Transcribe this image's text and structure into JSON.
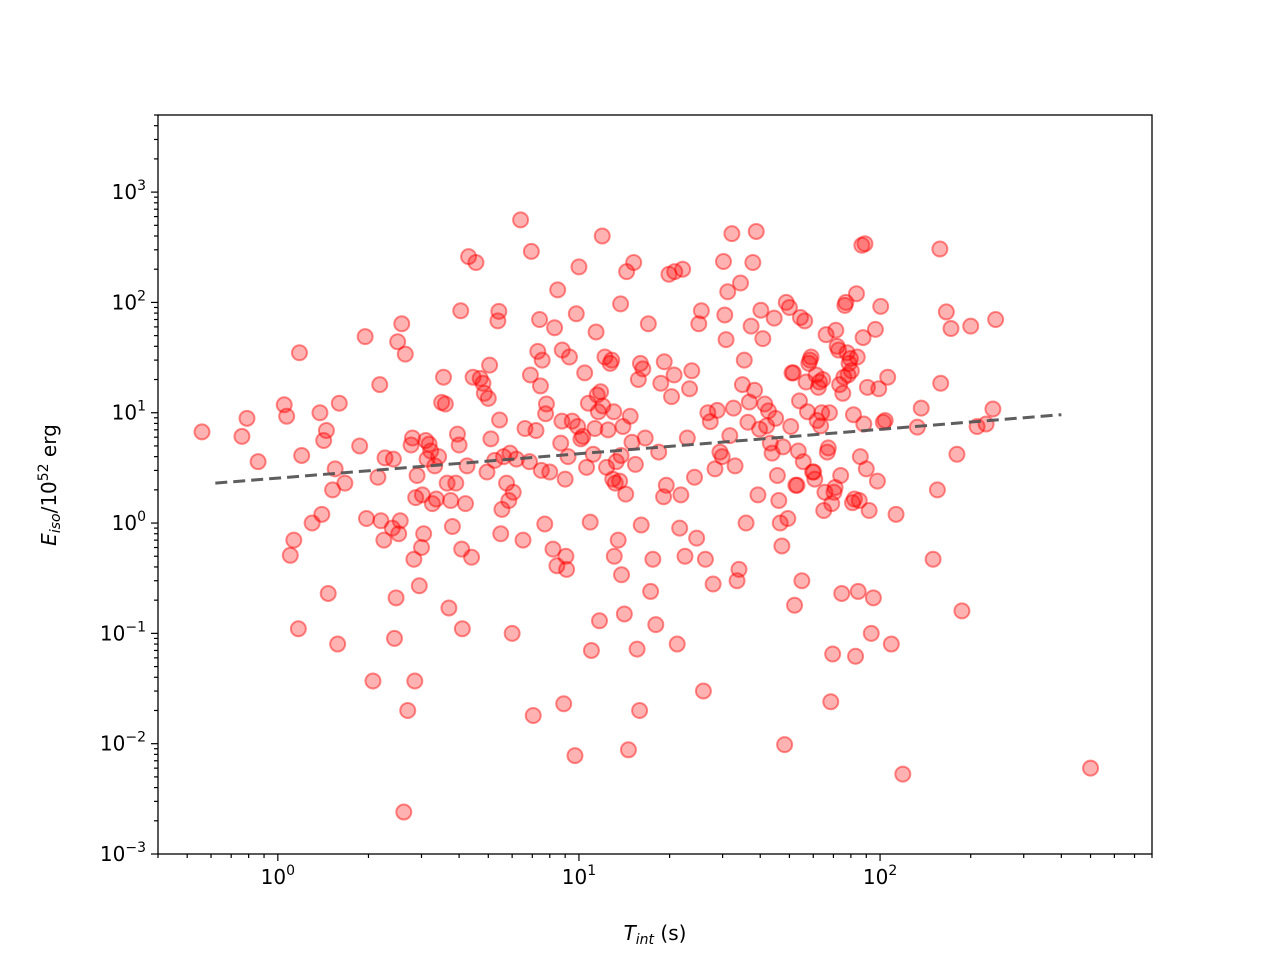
{
  "chart_data": {
    "type": "scatter",
    "xscale": "log",
    "yscale": "log",
    "xlim": [
      0.4,
      800
    ],
    "ylim": [
      0.001,
      5000
    ],
    "xlabel": {
      "base": "T",
      "sub": "int",
      "tail": " (s)"
    },
    "ylabel": {
      "base": "E",
      "sub": "iso",
      "mid": "/10",
      "sup": "52",
      "tail": " erg"
    },
    "xticks": [
      {
        "value": 1,
        "base": "10",
        "exp": "0"
      },
      {
        "value": 10,
        "base": "10",
        "exp": "1"
      },
      {
        "value": 100,
        "base": "10",
        "exp": "2"
      }
    ],
    "yticks": [
      {
        "value": 0.001,
        "base": "10",
        "exp": "−3"
      },
      {
        "value": 0.01,
        "base": "10",
        "exp": "−2"
      },
      {
        "value": 0.1,
        "base": "10",
        "exp": "−1"
      },
      {
        "value": 1,
        "base": "10",
        "exp": "0"
      },
      {
        "value": 10,
        "base": "10",
        "exp": "1"
      },
      {
        "value": 100,
        "base": "10",
        "exp": "2"
      },
      {
        "value": 1000,
        "base": "10",
        "exp": "3"
      }
    ],
    "marker_color": "#ff0000",
    "fit_line_color": "#555555",
    "fit_line": {
      "x": [
        0.62,
        400
      ],
      "y": [
        2.3,
        9.6
      ]
    },
    "points": [
      [
        0.56,
        6.7
      ],
      [
        0.76,
        6.1
      ],
      [
        0.79,
        8.9
      ],
      [
        0.86,
        3.6
      ],
      [
        1.05,
        11.8
      ],
      [
        1.07,
        9.3
      ],
      [
        1.1,
        0.51
      ],
      [
        1.13,
        0.7
      ],
      [
        1.17,
        0.11
      ],
      [
        1.18,
        35
      ],
      [
        1.2,
        4.1
      ],
      [
        1.3,
        1.0
      ],
      [
        1.38,
        10
      ],
      [
        1.4,
        1.2
      ],
      [
        1.42,
        5.6
      ],
      [
        1.45,
        6.9
      ],
      [
        1.47,
        0.23
      ],
      [
        1.52,
        2.0
      ],
      [
        1.55,
        3.1
      ],
      [
        1.58,
        0.08
      ],
      [
        1.6,
        12.2
      ],
      [
        1.67,
        2.3
      ],
      [
        1.87,
        5.0
      ],
      [
        1.95,
        49
      ],
      [
        1.97,
        1.1
      ],
      [
        2.07,
        0.037
      ],
      [
        2.15,
        2.6
      ],
      [
        2.18,
        18
      ],
      [
        2.2,
        1.05
      ],
      [
        2.25,
        0.7
      ],
      [
        2.27,
        3.9
      ],
      [
        2.4,
        0.9
      ],
      [
        2.42,
        3.8
      ],
      [
        2.44,
        0.09
      ],
      [
        2.47,
        0.21
      ],
      [
        2.5,
        44
      ],
      [
        2.52,
        0.8
      ],
      [
        2.55,
        1.05
      ],
      [
        2.58,
        64
      ],
      [
        2.62,
        0.0024
      ],
      [
        2.65,
        34
      ],
      [
        2.7,
        0.02
      ],
      [
        2.77,
        5.1
      ],
      [
        2.8,
        5.9
      ],
      [
        2.83,
        0.47
      ],
      [
        2.85,
        0.037
      ],
      [
        2.87,
        1.7
      ],
      [
        2.9,
        2.7
      ],
      [
        2.95,
        0.27
      ],
      [
        3.0,
        0.6
      ],
      [
        3.02,
        1.8
      ],
      [
        3.05,
        0.8
      ],
      [
        3.1,
        5.6
      ],
      [
        3.13,
        3.8
      ],
      [
        3.18,
        5.2
      ],
      [
        3.22,
        4.5
      ],
      [
        3.26,
        1.5
      ],
      [
        3.32,
        3.3
      ],
      [
        3.36,
        1.65
      ],
      [
        3.42,
        4.0
      ],
      [
        3.5,
        12.4
      ],
      [
        3.55,
        21
      ],
      [
        3.6,
        12
      ],
      [
        3.65,
        2.3
      ],
      [
        3.7,
        0.17
      ],
      [
        3.75,
        1.6
      ],
      [
        3.8,
        0.93
      ],
      [
        3.9,
        2.3
      ],
      [
        3.95,
        6.4
      ],
      [
        4.0,
        5.1
      ],
      [
        4.05,
        84
      ],
      [
        4.08,
        0.58
      ],
      [
        4.1,
        0.11
      ],
      [
        4.2,
        1.5
      ],
      [
        4.25,
        3.3
      ],
      [
        4.3,
        260
      ],
      [
        4.4,
        0.49
      ],
      [
        4.45,
        21
      ],
      [
        4.55,
        230
      ],
      [
        4.7,
        20.5
      ],
      [
        4.8,
        18.5
      ],
      [
        4.85,
        15
      ],
      [
        4.95,
        2.9
      ],
      [
        5.0,
        13.5
      ],
      [
        5.05,
        27
      ],
      [
        5.1,
        5.8
      ],
      [
        5.25,
        3.7
      ],
      [
        5.38,
        68
      ],
      [
        5.42,
        83
      ],
      [
        5.45,
        8.6
      ],
      [
        5.5,
        0.8
      ],
      [
        5.55,
        1.33
      ],
      [
        5.62,
        4.0
      ],
      [
        5.75,
        2.3
      ],
      [
        5.85,
        1.6
      ],
      [
        5.9,
        4.3
      ],
      [
        6.0,
        0.1
      ],
      [
        6.05,
        1.9
      ],
      [
        6.2,
        3.8
      ],
      [
        6.4,
        560
      ],
      [
        6.52,
        0.7
      ],
      [
        6.62,
        7.2
      ],
      [
        6.85,
        3.6
      ],
      [
        6.9,
        22
      ],
      [
        6.95,
        290
      ],
      [
        7.05,
        0.018
      ],
      [
        7.2,
        6.9
      ],
      [
        7.3,
        36
      ],
      [
        7.4,
        70
      ],
      [
        7.45,
        17.5
      ],
      [
        7.5,
        3.0
      ],
      [
        7.55,
        30
      ],
      [
        7.7,
        0.98
      ],
      [
        7.75,
        9.8
      ],
      [
        7.8,
        12
      ],
      [
        8.0,
        2.9
      ],
      [
        8.2,
        0.58
      ],
      [
        8.3,
        59
      ],
      [
        8.45,
        0.41
      ],
      [
        8.5,
        130
      ],
      [
        8.7,
        5.3
      ],
      [
        8.78,
        8.4
      ],
      [
        8.8,
        37
      ],
      [
        8.9,
        0.023
      ],
      [
        9.0,
        2.5
      ],
      [
        9.05,
        0.5
      ],
      [
        9.1,
        0.38
      ],
      [
        9.2,
        4.0
      ],
      [
        9.3,
        32
      ],
      [
        9.5,
        8.4
      ],
      [
        9.7,
        0.0078
      ],
      [
        9.8,
        79
      ],
      [
        9.9,
        7.5
      ],
      [
        10.0,
        210
      ],
      [
        10.15,
        5.8
      ],
      [
        10.3,
        6.1
      ],
      [
        10.45,
        23
      ],
      [
        10.6,
        3.2
      ],
      [
        10.75,
        12.2
      ],
      [
        10.9,
        1.02
      ],
      [
        11.0,
        0.07
      ],
      [
        11.15,
        4.2
      ],
      [
        11.3,
        7.2
      ],
      [
        11.4,
        54
      ],
      [
        11.5,
        14.5
      ],
      [
        11.6,
        10.2
      ],
      [
        11.7,
        0.13
      ],
      [
        11.8,
        15.5
      ],
      [
        11.95,
        400
      ],
      [
        12.0,
        11.5
      ],
      [
        12.2,
        32
      ],
      [
        12.35,
        3.2
      ],
      [
        12.5,
        7.0
      ],
      [
        12.7,
        28
      ],
      [
        12.85,
        30
      ],
      [
        12.95,
        2.5
      ],
      [
        13.05,
        10.2
      ],
      [
        13.1,
        0.5
      ],
      [
        13.2,
        2.3
      ],
      [
        13.3,
        3.6
      ],
      [
        13.5,
        0.7
      ],
      [
        13.65,
        2.4
      ],
      [
        13.75,
        97
      ],
      [
        13.8,
        4.1
      ],
      [
        13.85,
        0.34
      ],
      [
        14.0,
        7.5
      ],
      [
        14.15,
        0.15
      ],
      [
        14.3,
        1.83
      ],
      [
        14.4,
        190
      ],
      [
        14.6,
        0.0088
      ],
      [
        14.8,
        9.3
      ],
      [
        15.0,
        5.4
      ],
      [
        15.2,
        230
      ],
      [
        15.4,
        3.4
      ],
      [
        15.6,
        0.072
      ],
      [
        15.75,
        20
      ],
      [
        15.9,
        0.02
      ],
      [
        16.0,
        28
      ],
      [
        16.1,
        0.96
      ],
      [
        16.3,
        25
      ],
      [
        16.6,
        5.9
      ],
      [
        17.0,
        64
      ],
      [
        17.3,
        0.24
      ],
      [
        17.6,
        0.47
      ],
      [
        18.0,
        0.12
      ],
      [
        18.4,
        4.4
      ],
      [
        18.7,
        18.5
      ],
      [
        19.1,
        1.73
      ],
      [
        19.2,
        29
      ],
      [
        19.5,
        2.2
      ],
      [
        19.9,
        180
      ],
      [
        20.3,
        14
      ],
      [
        20.7,
        22
      ],
      [
        20.8,
        190
      ],
      [
        21.2,
        0.08
      ],
      [
        21.6,
        0.9
      ],
      [
        21.8,
        1.8
      ],
      [
        22.1,
        200
      ],
      [
        22.5,
        0.5
      ],
      [
        22.9,
        5.9
      ],
      [
        23.3,
        16.5
      ],
      [
        23.7,
        24
      ],
      [
        24.2,
        2.6
      ],
      [
        24.6,
        0.73
      ],
      [
        25.0,
        64
      ],
      [
        25.5,
        84
      ],
      [
        25.9,
        0.03
      ],
      [
        26.3,
        0.47
      ],
      [
        26.8,
        10
      ],
      [
        27.3,
        8.3
      ],
      [
        27.9,
        0.28
      ],
      [
        28.3,
        3.1
      ],
      [
        28.8,
        10.5
      ],
      [
        29.4,
        4.4
      ],
      [
        29.9,
        4.0
      ],
      [
        30.2,
        235
      ],
      [
        30.5,
        77
      ],
      [
        30.8,
        46
      ],
      [
        31.2,
        125
      ],
      [
        31.7,
        6.2
      ],
      [
        32.2,
        420
      ],
      [
        32.6,
        11
      ],
      [
        33.0,
        3.3
      ],
      [
        33.5,
        0.3
      ],
      [
        34.0,
        0.38
      ],
      [
        34.4,
        150
      ],
      [
        34.9,
        18
      ],
      [
        35.4,
        30
      ],
      [
        35.9,
        1.0
      ],
      [
        36.4,
        8.2
      ],
      [
        36.8,
        12.5
      ],
      [
        37.3,
        61
      ],
      [
        37.8,
        230
      ],
      [
        38.3,
        16
      ],
      [
        38.8,
        440
      ],
      [
        39.3,
        1.8
      ],
      [
        39.8,
        7.1
      ],
      [
        40.2,
        85
      ],
      [
        40.8,
        47
      ],
      [
        41.4,
        12
      ],
      [
        42.0,
        7.6
      ],
      [
        42.6,
        10.4
      ],
      [
        43.2,
        5.3
      ],
      [
        43.8,
        4.3
      ],
      [
        44.5,
        72
      ],
      [
        45.0,
        8.9
      ],
      [
        45.6,
        2.7
      ],
      [
        46.1,
        1.6
      ],
      [
        46.6,
        1.0
      ],
      [
        47.2,
        0.62
      ],
      [
        47.6,
        4.9
      ],
      [
        48.2,
        0.0098
      ],
      [
        48.8,
        100
      ],
      [
        49.4,
        1.1
      ],
      [
        50.0,
        90
      ],
      [
        50.5,
        7.5
      ],
      [
        51.0,
        23
      ],
      [
        51.5,
        23
      ],
      [
        52.0,
        0.18
      ],
      [
        52.5,
        2.2
      ],
      [
        53.0,
        2.2
      ],
      [
        53.5,
        4.5
      ],
      [
        54.0,
        12.8
      ],
      [
        54.4,
        73
      ],
      [
        55.0,
        0.3
      ],
      [
        55.6,
        3.6
      ],
      [
        56.2,
        68
      ],
      [
        56.8,
        19
      ],
      [
        57.4,
        10.2
      ],
      [
        58.0,
        28
      ],
      [
        58.5,
        30
      ],
      [
        59.0,
        32
      ],
      [
        59.7,
        2.9
      ],
      [
        60.2,
        2.9
      ],
      [
        60.7,
        2.5
      ],
      [
        61.3,
        22
      ],
      [
        61.8,
        8.5
      ],
      [
        62.4,
        17
      ],
      [
        62.9,
        19
      ],
      [
        63.5,
        7.6
      ],
      [
        64.0,
        10
      ],
      [
        64.5,
        20
      ],
      [
        65.0,
        1.3
      ],
      [
        65.6,
        1.9
      ],
      [
        66.2,
        51
      ],
      [
        66.8,
        4.4
      ],
      [
        67.3,
        4.8
      ],
      [
        67.9,
        10
      ],
      [
        68.6,
        0.024
      ],
      [
        69.1,
        1.5
      ],
      [
        69.6,
        0.065
      ],
      [
        70.3,
        1.9
      ],
      [
        70.9,
        2.1
      ],
      [
        71.3,
        56
      ],
      [
        72.0,
        40
      ],
      [
        72.8,
        37
      ],
      [
        73.4,
        18
      ],
      [
        74.0,
        2.7
      ],
      [
        74.6,
        0.23
      ],
      [
        75.2,
        15
      ],
      [
        75.8,
        21
      ],
      [
        76.4,
        94
      ],
      [
        77.0,
        100
      ],
      [
        77.7,
        35
      ],
      [
        78.3,
        22
      ],
      [
        78.9,
        28
      ],
      [
        79.7,
        31
      ],
      [
        80.3,
        24
      ],
      [
        81.0,
        1.53
      ],
      [
        81.6,
        9.6
      ],
      [
        82.2,
        1.65
      ],
      [
        82.9,
        0.062
      ],
      [
        83.5,
        120
      ],
      [
        84.0,
        32
      ],
      [
        84.6,
        0.24
      ],
      [
        85.3,
        1.6
      ],
      [
        86.0,
        4.0
      ],
      [
        87.0,
        330
      ],
      [
        87.8,
        48
      ],
      [
        88.3,
        7.9
      ],
      [
        89.1,
        340
      ],
      [
        90.0,
        3.1
      ],
      [
        90.8,
        17
      ],
      [
        92.0,
        1.3
      ],
      [
        93.5,
        0.1
      ],
      [
        95.0,
        0.21
      ],
      [
        96.5,
        57
      ],
      [
        98.0,
        2.4
      ],
      [
        99.0,
        16.5
      ],
      [
        100.5,
        92
      ],
      [
        102.5,
        8.2
      ],
      [
        104.0,
        8.5
      ],
      [
        106.0,
        21
      ],
      [
        109.0,
        0.08
      ],
      [
        113.0,
        1.2
      ],
      [
        119.0,
        0.0053
      ],
      [
        133.0,
        7.4
      ],
      [
        137.0,
        11
      ],
      [
        150.0,
        0.47
      ],
      [
        155.0,
        2.0
      ],
      [
        158.0,
        305
      ],
      [
        159.0,
        18.5
      ],
      [
        166.0,
        82
      ],
      [
        172.0,
        58
      ],
      [
        180.0,
        4.2
      ],
      [
        187.0,
        0.16
      ],
      [
        200.0,
        61
      ],
      [
        210.0,
        7.5
      ],
      [
        225.0,
        7.9
      ],
      [
        237.0,
        10.8
      ],
      [
        242.0,
        70
      ],
      [
        500.0,
        0.006
      ]
    ]
  }
}
